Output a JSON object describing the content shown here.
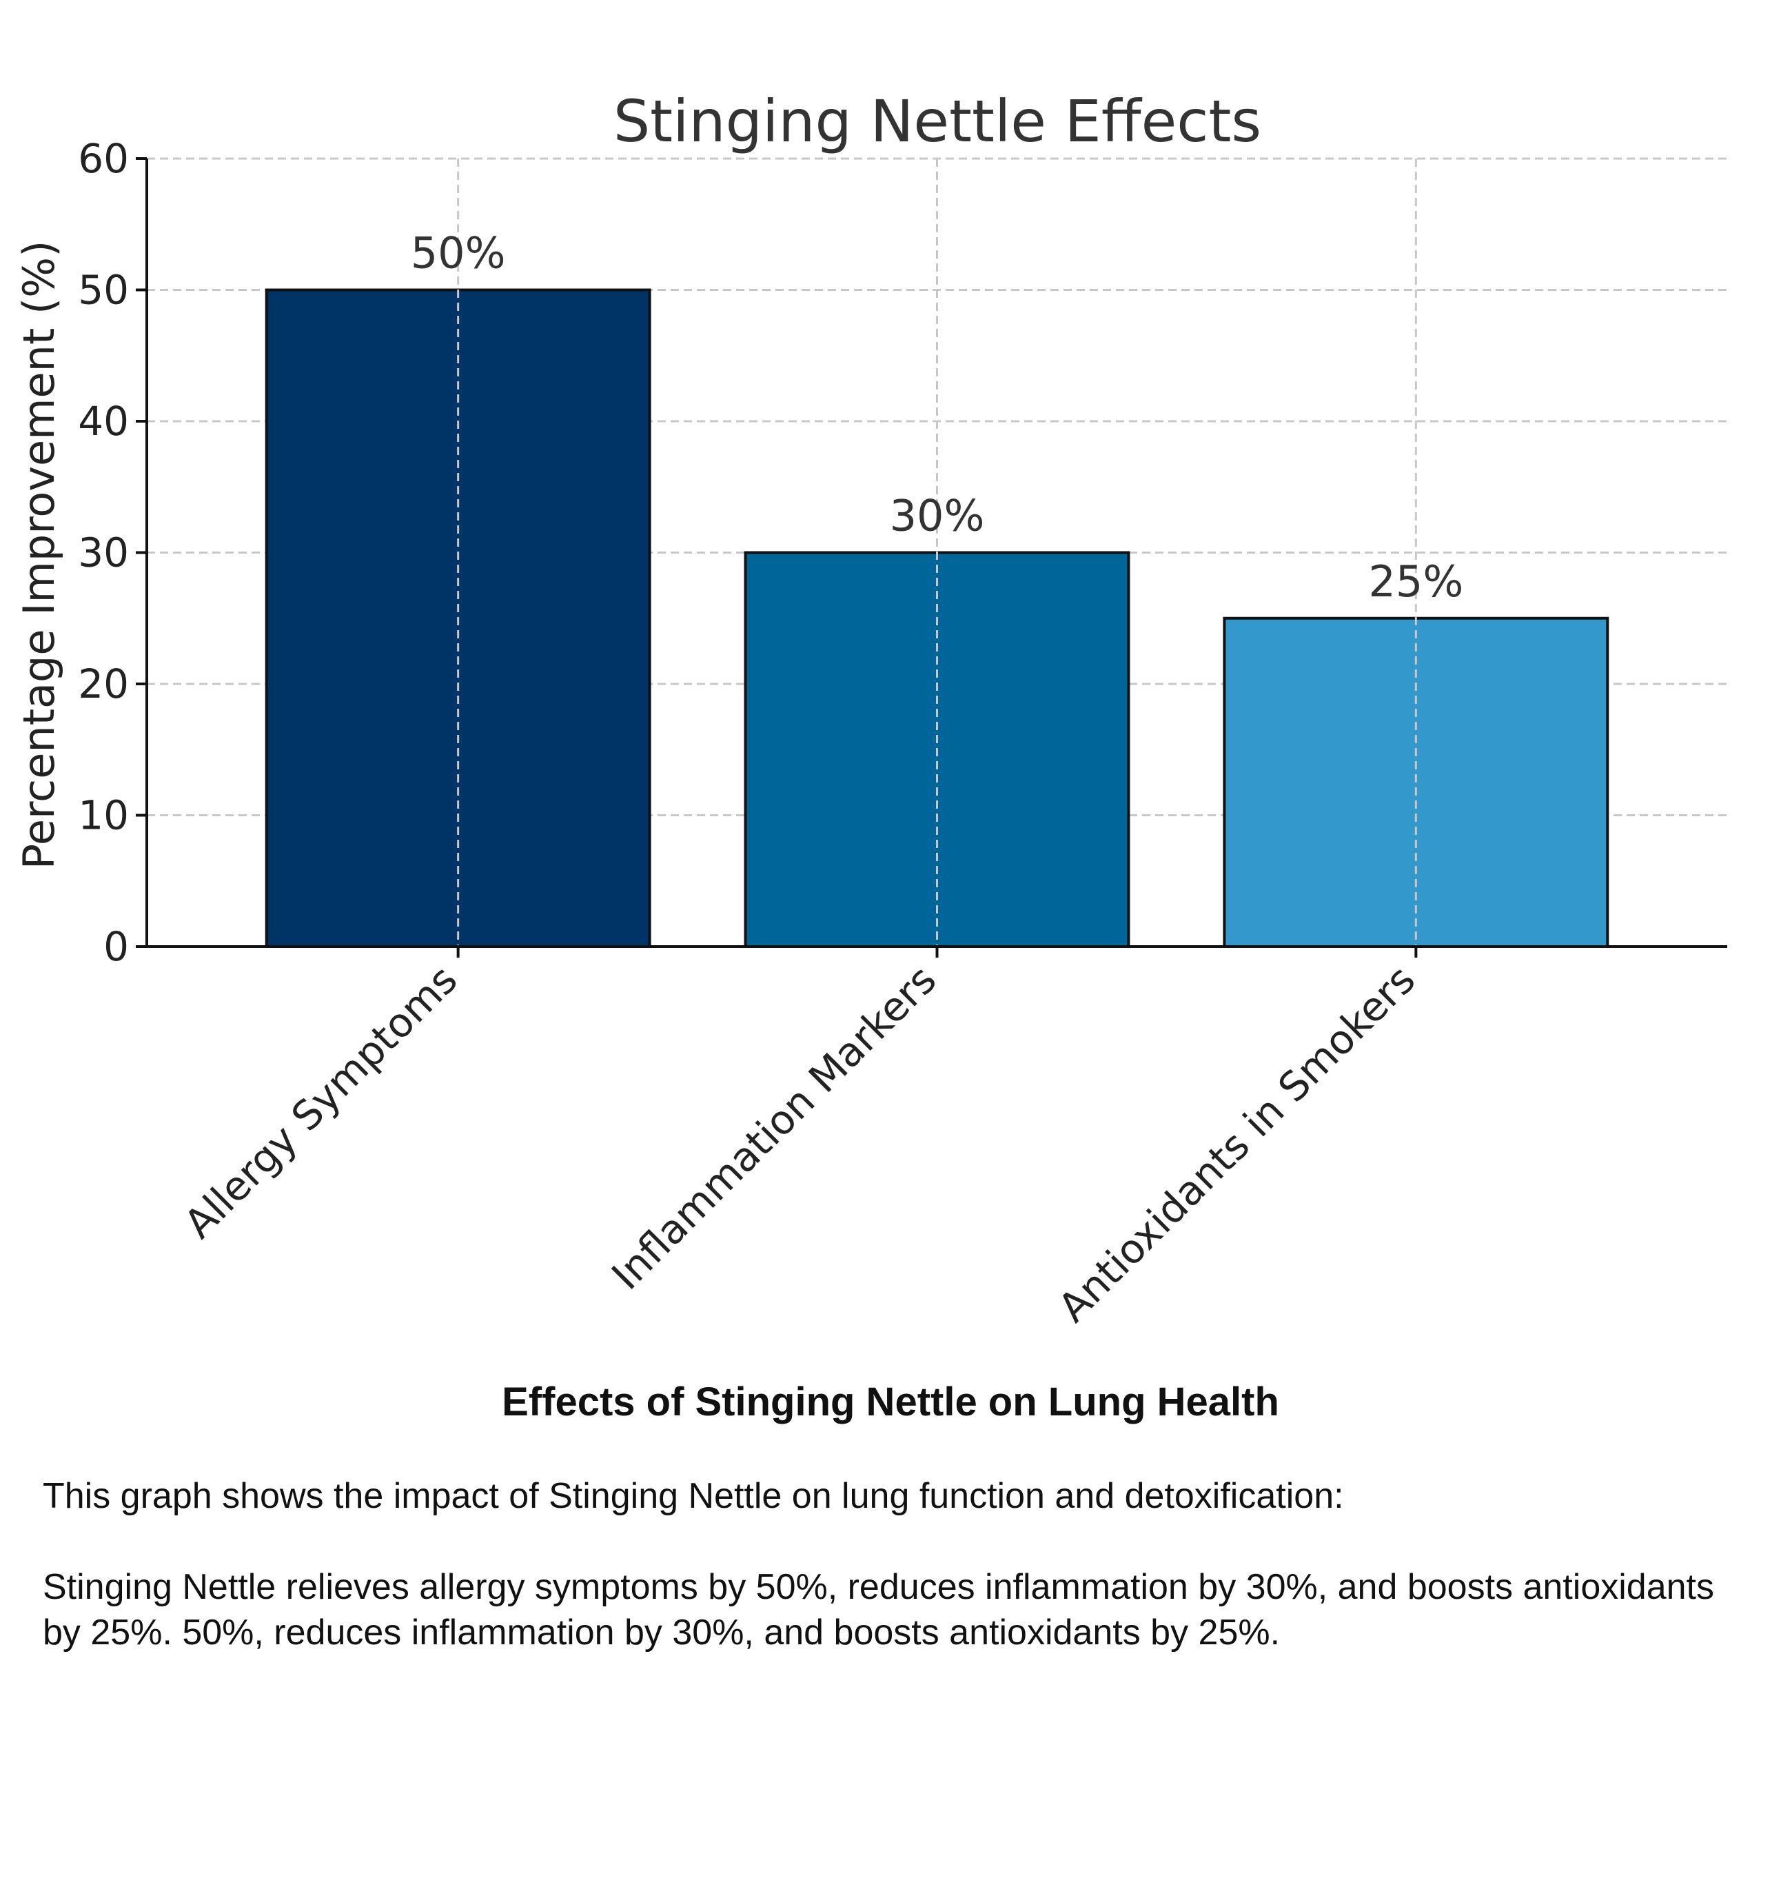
{
  "chart_data": {
    "type": "bar",
    "title": "Stinging Nettle Effects",
    "xlabel": "",
    "ylabel": "Percentage Improvement (%)",
    "categories": [
      "Allergy Symptoms",
      "Inflammation Markers",
      "Antioxidants in Smokers"
    ],
    "values": [
      50,
      30,
      25
    ],
    "value_labels": [
      "50%",
      "30%",
      "25%"
    ],
    "colors": [
      "#003366",
      "#006699",
      "#3399cc"
    ],
    "ylim": [
      0,
      60
    ],
    "yticks": [
      0,
      10,
      20,
      30,
      40,
      50,
      60
    ],
    "grid": true
  },
  "caption": {
    "title": "Effects of Stinging Nettle on Lung Health",
    "intro": "This graph shows the impact of Stinging Nettle on lung function and detoxification:",
    "body": "Stinging Nettle relieves allergy symptoms by 50%, reduces inflammation by 30%, and boosts antioxidants by 25%. 50%, reduces inflammation by 30%, and boosts antioxidants by 25%."
  }
}
